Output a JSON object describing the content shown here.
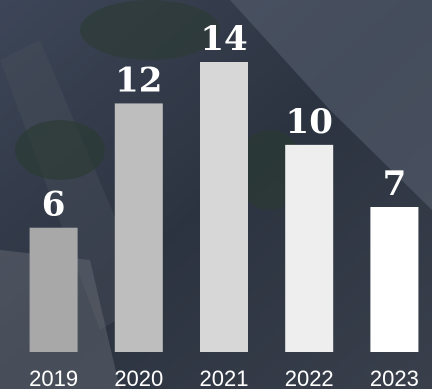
{
  "chart_data": {
    "type": "bar",
    "categories": [
      "2019",
      "2020",
      "2021",
      "2022",
      "2023"
    ],
    "values": [
      6,
      12,
      14,
      10,
      7
    ],
    "colors": [
      "#a8a8a8",
      "#bebebe",
      "#d7d7d7",
      "#eeeeee",
      "#ffffff"
    ]
  }
}
